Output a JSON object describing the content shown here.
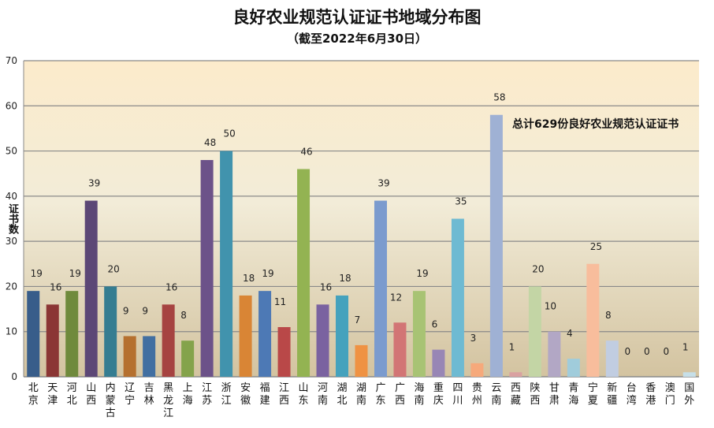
{
  "chart_data": {
    "type": "bar",
    "title": "良好农业规范认证证书地域分布图",
    "subtitle": "（截至2022年6月30日）",
    "ylabel": "证书数",
    "annotation": "总计629份良好农业规范认证证书",
    "ylim": [
      0,
      70
    ],
    "yticks": [
      0,
      10,
      20,
      30,
      40,
      50,
      60,
      70
    ],
    "grid": true,
    "categories": [
      "北京",
      "天津",
      "河北",
      "山西",
      "内蒙古",
      "辽宁",
      "吉林",
      "黑龙江",
      "上海",
      "江苏",
      "浙江",
      "安徽",
      "福建",
      "江西",
      "山东",
      "河南",
      "湖北",
      "湖南",
      "广东",
      "广西",
      "海南",
      "重庆",
      "四川",
      "贵州",
      "云南",
      "西藏",
      "陕西",
      "甘肃",
      "青海",
      "宁夏",
      "新疆",
      "台湾",
      "香港",
      "澳门",
      "国外"
    ],
    "values": [
      19,
      16,
      19,
      39,
      20,
      9,
      9,
      16,
      8,
      48,
      50,
      18,
      19,
      11,
      46,
      16,
      18,
      7,
      39,
      12,
      19,
      6,
      35,
      3,
      58,
      1,
      20,
      10,
      4,
      25,
      8,
      0,
      0,
      0,
      1
    ],
    "colors": [
      "#385d8a",
      "#8b3635",
      "#6f8a3c",
      "#5c4776",
      "#357d91",
      "#b5702f",
      "#426fa1",
      "#a64341",
      "#84a34b",
      "#6c5289",
      "#4193ad",
      "#d98535",
      "#4d79b5",
      "#b94848",
      "#93b352",
      "#7a62a0",
      "#45a2bd",
      "#ef9243",
      "#7b9bce",
      "#d27575",
      "#a8c374",
      "#9886b5",
      "#6ebad2",
      "#f6a97b",
      "#9fb1d4",
      "#d9a1a1",
      "#c3d5a5",
      "#b2a7c5",
      "#a0ccdb",
      "#f8bd9c",
      "#c1cde1",
      "#e0bebd",
      "#d2dfbe",
      "#cac2d9",
      "#c6dfe8"
    ]
  }
}
